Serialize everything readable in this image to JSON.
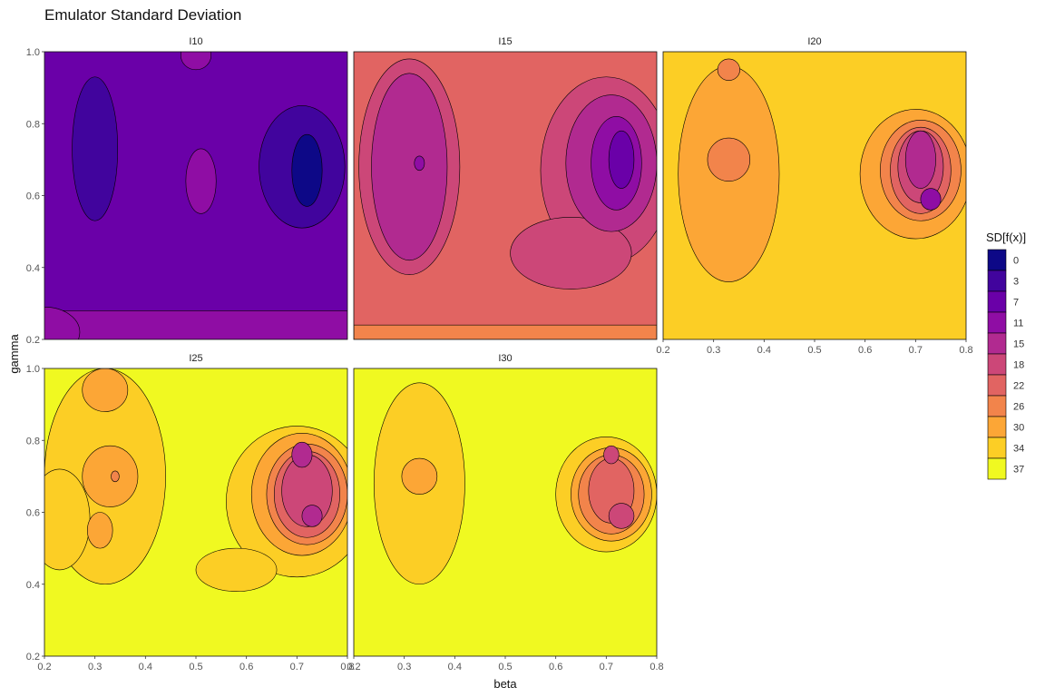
{
  "chart_data": {
    "type": "heatmap",
    "subtype": "filled-contour",
    "title": "Emulator Standard Deviation",
    "xlabel": "beta",
    "ylabel": "gamma",
    "xlim": [
      0.2,
      0.8
    ],
    "ylim": [
      0.2,
      1.0
    ],
    "x_ticks": [
      "0.2",
      "0.3",
      "0.4",
      "0.5",
      "0.6",
      "0.7",
      "0.8"
    ],
    "y_ticks": [
      "0.2",
      "0.4",
      "0.6",
      "0.8",
      "1.0"
    ],
    "grid": false,
    "legend": {
      "title": "SD[f(x)]",
      "placement": "right",
      "levels": [
        "0",
        "3",
        "7",
        "11",
        "15",
        "18",
        "22",
        "26",
        "30",
        "34",
        "37"
      ],
      "colors": [
        "#0d0887",
        "#41049d",
        "#6a00a8",
        "#8f0da4",
        "#b12a90",
        "#cc4778",
        "#e16462",
        "#f2844b",
        "#fca636",
        "#fcce25",
        "#f0f921"
      ]
    },
    "panels": [
      {
        "name": "I10",
        "background_level": 2,
        "features": [
          {
            "type": "rect",
            "x": [
              0.2,
              0.8
            ],
            "y": [
              0.2,
              0.28
            ],
            "level": 3
          },
          {
            "type": "circle",
            "cx": 0.2,
            "cy": 0.22,
            "r": 0.07,
            "level": 3
          },
          {
            "type": "circle",
            "cx": 0.3,
            "cy": 0.73,
            "rx": 0.045,
            "ry": 0.2,
            "level": 1
          },
          {
            "type": "circle",
            "cx": 0.71,
            "cy": 0.68,
            "rx": 0.085,
            "ry": 0.17,
            "level": 1
          },
          {
            "type": "circle",
            "cx": 0.72,
            "cy": 0.67,
            "rx": 0.03,
            "ry": 0.1,
            "level": 0
          },
          {
            "type": "circle",
            "cx": 0.51,
            "cy": 0.64,
            "rx": 0.03,
            "ry": 0.09,
            "level": 3
          },
          {
            "type": "circle",
            "cx": 0.5,
            "cy": 0.99,
            "rx": 0.03,
            "ry": 0.04,
            "level": 3
          }
        ]
      },
      {
        "name": "I15",
        "background_level": 6,
        "features": [
          {
            "type": "rect",
            "x": [
              0.2,
              0.8
            ],
            "y": [
              0.2,
              0.24
            ],
            "level": 7
          },
          {
            "type": "circle",
            "cx": 0.31,
            "cy": 0.68,
            "rx": 0.1,
            "ry": 0.3,
            "level": 5
          },
          {
            "type": "circle",
            "cx": 0.31,
            "cy": 0.68,
            "rx": 0.075,
            "ry": 0.26,
            "level": 4
          },
          {
            "type": "circle",
            "cx": 0.33,
            "cy": 0.69,
            "rx": 0.01,
            "ry": 0.02,
            "level": 3
          },
          {
            "type": "circle",
            "cx": 0.7,
            "cy": 0.67,
            "rx": 0.13,
            "ry": 0.26,
            "level": 5
          },
          {
            "type": "circle",
            "cx": 0.63,
            "cy": 0.44,
            "rx": 0.12,
            "ry": 0.1,
            "level": 5
          },
          {
            "type": "circle",
            "cx": 0.71,
            "cy": 0.69,
            "rx": 0.09,
            "ry": 0.19,
            "level": 4
          },
          {
            "type": "circle",
            "cx": 0.72,
            "cy": 0.69,
            "rx": 0.05,
            "ry": 0.13,
            "level": 3
          },
          {
            "type": "circle",
            "cx": 0.73,
            "cy": 0.7,
            "rx": 0.025,
            "ry": 0.08,
            "level": 2
          }
        ]
      },
      {
        "name": "I20",
        "background_level": 9,
        "features": [
          {
            "type": "circle",
            "cx": 0.33,
            "cy": 0.66,
            "rx": 0.1,
            "ry": 0.3,
            "level": 8
          },
          {
            "type": "circle",
            "cx": 0.33,
            "cy": 0.95,
            "rx": 0.022,
            "ry": 0.03,
            "level": 7
          },
          {
            "type": "circle",
            "cx": 0.33,
            "cy": 0.7,
            "rx": 0.042,
            "ry": 0.06,
            "level": 7
          },
          {
            "type": "circle",
            "cx": 0.7,
            "cy": 0.66,
            "rx": 0.11,
            "ry": 0.18,
            "level": 8
          },
          {
            "type": "circle",
            "cx": 0.71,
            "cy": 0.67,
            "rx": 0.08,
            "ry": 0.14,
            "level": 7
          },
          {
            "type": "circle",
            "cx": 0.71,
            "cy": 0.67,
            "rx": 0.06,
            "ry": 0.12,
            "level": 6
          },
          {
            "type": "circle",
            "cx": 0.71,
            "cy": 0.68,
            "rx": 0.045,
            "ry": 0.1,
            "level": 5
          },
          {
            "type": "circle",
            "cx": 0.71,
            "cy": 0.7,
            "rx": 0.03,
            "ry": 0.08,
            "level": 4
          },
          {
            "type": "circle",
            "cx": 0.73,
            "cy": 0.59,
            "rx": 0.02,
            "ry": 0.03,
            "level": 3
          }
        ]
      },
      {
        "name": "I25",
        "background_level": 10,
        "features": [
          {
            "type": "circle",
            "cx": 0.32,
            "cy": 0.7,
            "rx": 0.12,
            "ry": 0.3,
            "level": 9
          },
          {
            "type": "circle",
            "cx": 0.23,
            "cy": 0.58,
            "rx": 0.06,
            "ry": 0.14,
            "level": 9
          },
          {
            "type": "circle",
            "cx": 0.32,
            "cy": 0.94,
            "rx": 0.045,
            "ry": 0.06,
            "level": 8
          },
          {
            "type": "circle",
            "cx": 0.33,
            "cy": 0.7,
            "rx": 0.055,
            "ry": 0.085,
            "level": 8
          },
          {
            "type": "circle",
            "cx": 0.31,
            "cy": 0.55,
            "rx": 0.025,
            "ry": 0.05,
            "level": 8
          },
          {
            "type": "circle",
            "cx": 0.34,
            "cy": 0.7,
            "rx": 0.008,
            "ry": 0.015,
            "level": 7
          },
          {
            "type": "circle",
            "cx": 0.7,
            "cy": 0.63,
            "rx": 0.14,
            "ry": 0.21,
            "level": 9
          },
          {
            "type": "circle",
            "cx": 0.58,
            "cy": 0.44,
            "rx": 0.08,
            "ry": 0.06,
            "level": 9
          },
          {
            "type": "circle",
            "cx": 0.71,
            "cy": 0.65,
            "rx": 0.1,
            "ry": 0.17,
            "level": 8
          },
          {
            "type": "circle",
            "cx": 0.72,
            "cy": 0.65,
            "rx": 0.08,
            "ry": 0.14,
            "level": 7
          },
          {
            "type": "circle",
            "cx": 0.72,
            "cy": 0.65,
            "rx": 0.065,
            "ry": 0.12,
            "level": 6
          },
          {
            "type": "circle",
            "cx": 0.72,
            "cy": 0.66,
            "rx": 0.05,
            "ry": 0.1,
            "level": 5
          },
          {
            "type": "circle",
            "cx": 0.71,
            "cy": 0.76,
            "rx": 0.02,
            "ry": 0.035,
            "level": 4
          },
          {
            "type": "circle",
            "cx": 0.73,
            "cy": 0.59,
            "rx": 0.02,
            "ry": 0.03,
            "level": 4
          }
        ]
      },
      {
        "name": "I30",
        "background_level": 10,
        "features": [
          {
            "type": "circle",
            "cx": 0.33,
            "cy": 0.68,
            "rx": 0.09,
            "ry": 0.28,
            "level": 9
          },
          {
            "type": "circle",
            "cx": 0.33,
            "cy": 0.7,
            "rx": 0.035,
            "ry": 0.05,
            "level": 8
          },
          {
            "type": "circle",
            "cx": 0.7,
            "cy": 0.65,
            "rx": 0.1,
            "ry": 0.16,
            "level": 9
          },
          {
            "type": "circle",
            "cx": 0.71,
            "cy": 0.65,
            "rx": 0.08,
            "ry": 0.13,
            "level": 8
          },
          {
            "type": "circle",
            "cx": 0.71,
            "cy": 0.65,
            "rx": 0.065,
            "ry": 0.11,
            "level": 7
          },
          {
            "type": "circle",
            "cx": 0.71,
            "cy": 0.66,
            "rx": 0.045,
            "ry": 0.09,
            "level": 6
          },
          {
            "type": "circle",
            "cx": 0.71,
            "cy": 0.76,
            "rx": 0.015,
            "ry": 0.025,
            "level": 5
          },
          {
            "type": "circle",
            "cx": 0.73,
            "cy": 0.59,
            "rx": 0.025,
            "ry": 0.035,
            "level": 5
          }
        ]
      }
    ]
  }
}
